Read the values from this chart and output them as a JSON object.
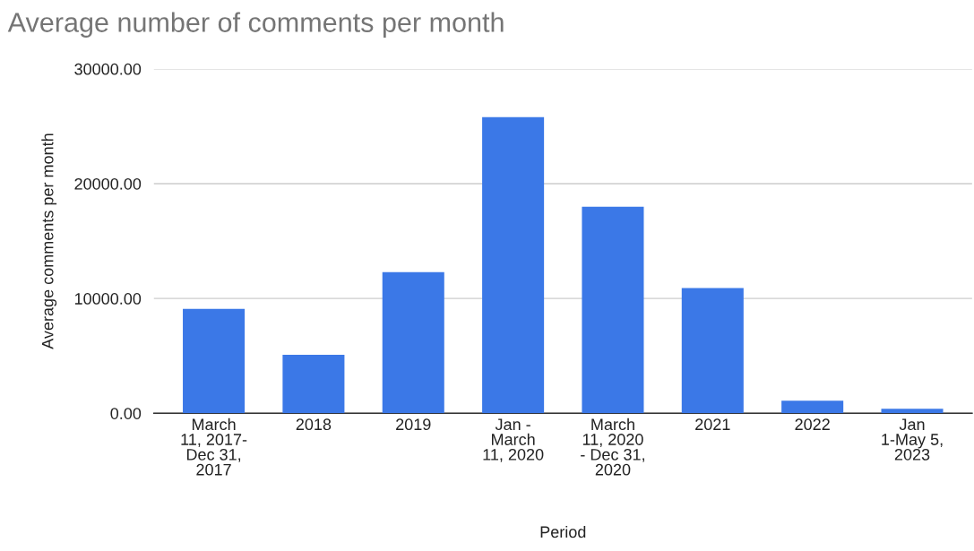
{
  "chart_data": {
    "type": "bar",
    "title": "Average number of comments per month",
    "xlabel": "Period",
    "ylabel": "Average comments per month",
    "categories": [
      "March\n11, 2017-\nDec 31,\n2017",
      "2018",
      "2019",
      "Jan -\nMarch\n11, 2020",
      "March\n11, 2020\n- Dec 31,\n2020",
      "2021",
      "2022",
      "Jan\n1-May 5,\n2023"
    ],
    "values": [
      9100,
      5100,
      12300,
      25800,
      18000,
      10900,
      1100,
      400
    ],
    "color": "#3b78e7",
    "ylim": [
      0,
      30000
    ],
    "yticks": [
      {
        "value": 0,
        "label": "0.00"
      },
      {
        "value": 10000,
        "label": "10000.00"
      },
      {
        "value": 20000,
        "label": "20000.00"
      },
      {
        "value": 30000,
        "label": "30000.00"
      }
    ],
    "grid": "y",
    "legend": false
  }
}
